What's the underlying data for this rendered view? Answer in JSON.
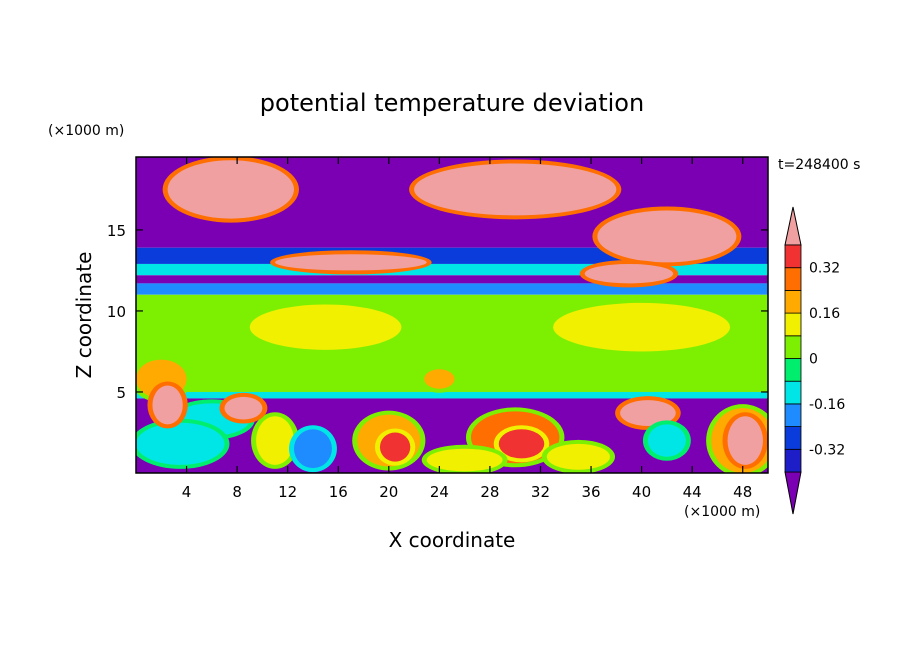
{
  "chart_data": {
    "type": "heatmap",
    "title": "potential temperature deviation",
    "xlabel": "X coordinate",
    "ylabel": "Z coordinate",
    "x_unit": "(×1000 m)",
    "y_unit": "(×1000 m)",
    "time_label": "t=248400 s",
    "xlim": [
      0,
      50
    ],
    "ylim": [
      0,
      19.5
    ],
    "x_ticks": [
      4,
      8,
      12,
      16,
      20,
      24,
      28,
      32,
      36,
      40,
      44,
      48
    ],
    "y_ticks": [
      5,
      10,
      15
    ],
    "colorbar": {
      "levels": [
        -0.4,
        -0.32,
        -0.24,
        -0.16,
        -0.08,
        0,
        0.08,
        0.16,
        0.24,
        0.32,
        0.4
      ],
      "labels": [
        "0.32",
        "0.16",
        "0",
        "-0.16",
        "-0.32"
      ],
      "label_values": [
        0.32,
        0.16,
        0,
        -0.16,
        -0.32
      ],
      "colors": [
        "#7b00b4",
        "#1e1ec8",
        "#0a3cdc",
        "#1e8cff",
        "#00e6e6",
        "#00ee6e",
        "#7cf000",
        "#f0f000",
        "#ffaa00",
        "#ff6e00",
        "#f03232",
        "#f0a0a0"
      ],
      "extend": "both"
    },
    "regions": [
      {
        "kind": "band",
        "z": [
          13.9,
          19.5
        ],
        "value": -0.45
      },
      {
        "kind": "band",
        "z": [
          12.9,
          13.9
        ],
        "value": -0.3
      },
      {
        "kind": "band",
        "z": [
          12.2,
          12.9
        ],
        "value": -0.1
      },
      {
        "kind": "band",
        "z": [
          11.7,
          12.2
        ],
        "value": -0.45
      },
      {
        "kind": "band",
        "z": [
          11.0,
          11.7
        ],
        "value": -0.2
      },
      {
        "kind": "band",
        "z": [
          5.0,
          11.0
        ],
        "value": 0.04
      },
      {
        "kind": "band",
        "z": [
          4.6,
          5.0
        ],
        "value": -0.12
      },
      {
        "kind": "band",
        "z": [
          0,
          4.6
        ],
        "value": -0.45
      },
      {
        "kind": "blob",
        "x": 7.5,
        "z": 17.5,
        "rx": 5.0,
        "rz": 1.8,
        "value": 0.45
      },
      {
        "kind": "blob",
        "x": 30.0,
        "z": 17.5,
        "rx": 8.0,
        "rz": 1.6,
        "value": 0.45
      },
      {
        "kind": "blob",
        "x": 42.0,
        "z": 14.6,
        "rx": 5.5,
        "rz": 1.6,
        "value": 0.45
      },
      {
        "kind": "blob",
        "x": 17.0,
        "z": 13.0,
        "rx": 6.0,
        "rz": 0.5,
        "value": 0.45
      },
      {
        "kind": "blob",
        "x": 39.0,
        "z": 12.3,
        "rx": 3.5,
        "rz": 0.6,
        "value": 0.45
      },
      {
        "kind": "blob",
        "x": 15.0,
        "z": 9.0,
        "rx": 6.0,
        "rz": 1.4,
        "value": 0.1
      },
      {
        "kind": "blob",
        "x": 40.0,
        "z": 9.0,
        "rx": 7.0,
        "rz": 1.5,
        "value": 0.1
      },
      {
        "kind": "blob",
        "x": 24.0,
        "z": 5.8,
        "rx": 1.2,
        "rz": 0.6,
        "value": 0.2
      },
      {
        "kind": "blob",
        "x": 2.0,
        "z": 5.8,
        "rx": 2.0,
        "rz": 1.2,
        "value": 0.2
      },
      {
        "kind": "blob",
        "x": 6.0,
        "z": 3.3,
        "rx": 3.0,
        "rz": 1.0,
        "value": -0.12
      },
      {
        "kind": "blob",
        "x": 3.5,
        "z": 1.8,
        "rx": 3.5,
        "rz": 1.3,
        "value": -0.12
      },
      {
        "kind": "blob",
        "x": 11.0,
        "z": 2.0,
        "rx": 1.5,
        "rz": 1.5,
        "value": 0.1
      },
      {
        "kind": "blob",
        "x": 20.0,
        "z": 2.0,
        "rx": 2.5,
        "rz": 1.6,
        "value": 0.2
      },
      {
        "kind": "blob",
        "x": 20.5,
        "z": 1.6,
        "rx": 1.2,
        "rz": 0.9,
        "value": 0.32
      },
      {
        "kind": "blob",
        "x": 30.0,
        "z": 2.2,
        "rx": 3.5,
        "rz": 1.6,
        "value": 0.25
      },
      {
        "kind": "blob",
        "x": 30.5,
        "z": 1.8,
        "rx": 1.8,
        "rz": 0.9,
        "value": 0.35
      },
      {
        "kind": "blob",
        "x": 26.0,
        "z": 0.8,
        "rx": 3.0,
        "rz": 0.7,
        "value": 0.1
      },
      {
        "kind": "blob",
        "x": 35.0,
        "z": 1.0,
        "rx": 2.5,
        "rz": 0.8,
        "value": 0.1
      },
      {
        "kind": "blob",
        "x": 14.0,
        "z": 1.5,
        "rx": 1.5,
        "rz": 1.2,
        "value": -0.2
      },
      {
        "kind": "blob",
        "x": 40.5,
        "z": 3.7,
        "rx": 2.2,
        "rz": 0.8,
        "value": 0.45
      },
      {
        "kind": "blob",
        "x": 42.0,
        "z": 2.0,
        "rx": 1.5,
        "rz": 1.0,
        "value": -0.12
      },
      {
        "kind": "blob",
        "x": 48.0,
        "z": 2.0,
        "rx": 2.5,
        "rz": 2.0,
        "value": 0.2
      },
      {
        "kind": "blob",
        "x": 48.2,
        "z": 2.0,
        "rx": 1.4,
        "rz": 1.5,
        "value": 0.45
      },
      {
        "kind": "blob",
        "x": 2.5,
        "z": 4.2,
        "rx": 1.2,
        "rz": 1.2,
        "value": 0.45
      },
      {
        "kind": "blob",
        "x": 8.5,
        "z": 4.0,
        "rx": 1.5,
        "rz": 0.7,
        "value": 0.45
      }
    ]
  }
}
